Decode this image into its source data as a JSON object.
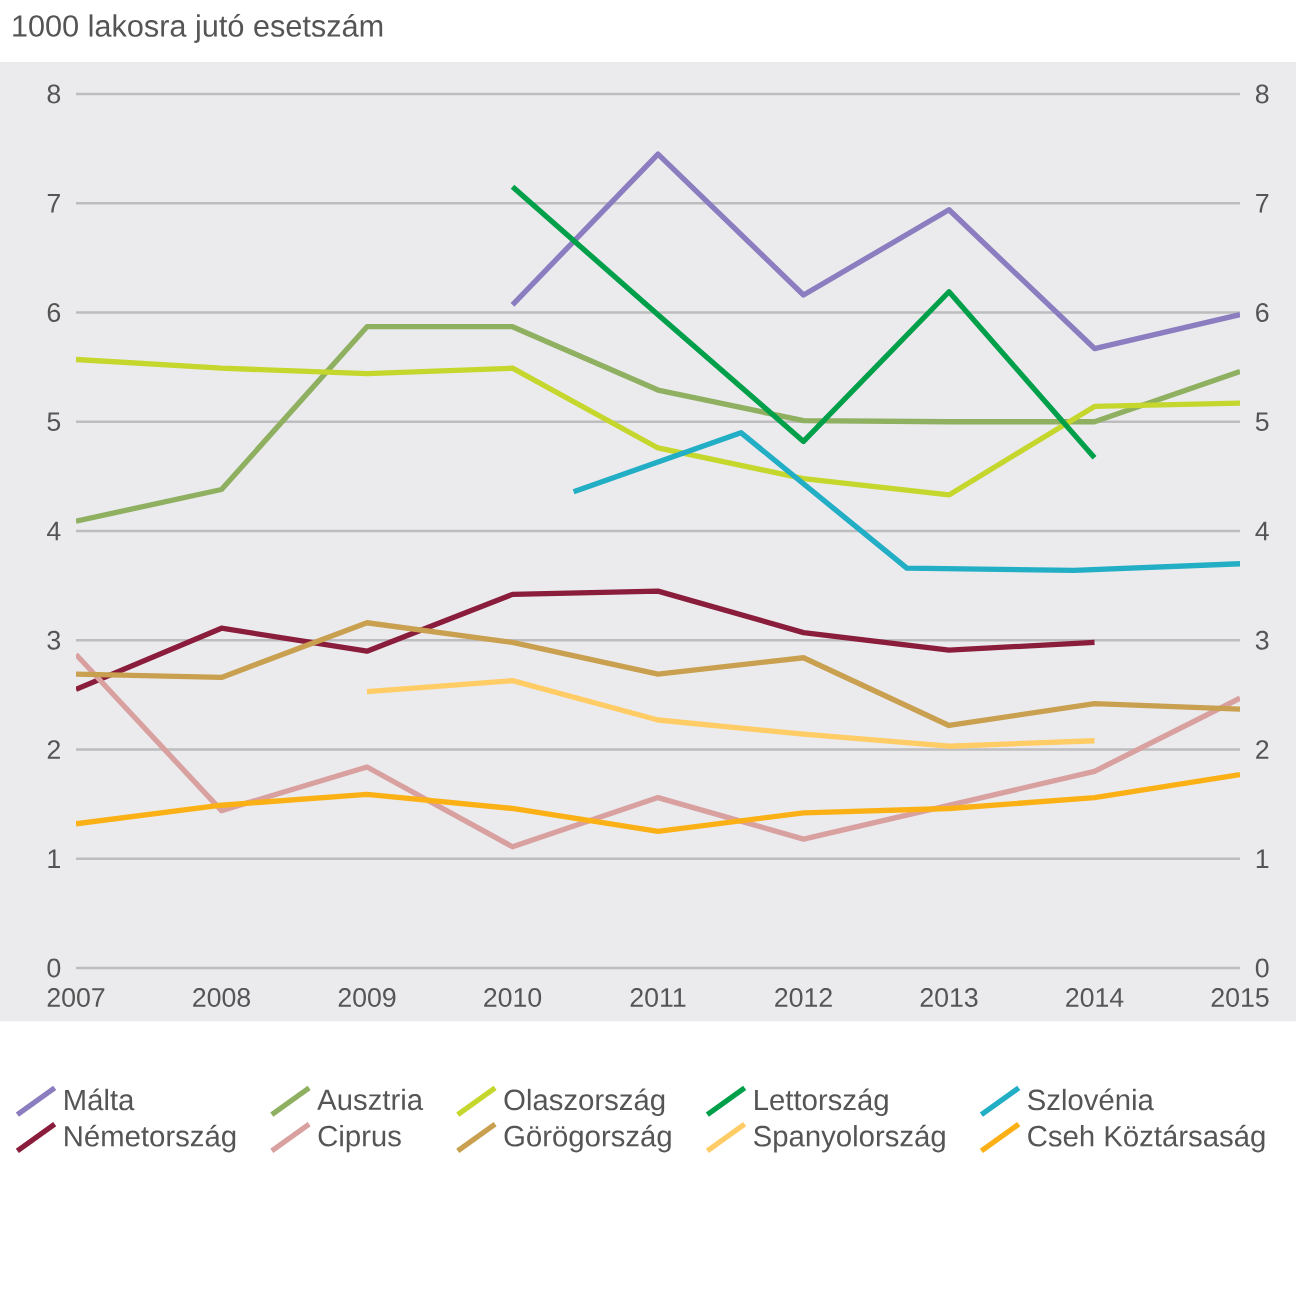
{
  "chart_data": {
    "type": "line",
    "ylabel": "1000 lakosra jutó esetszám",
    "x": [
      2007,
      2008,
      2009,
      2010,
      2011,
      2012,
      2013,
      2014,
      2015
    ],
    "xlim": [
      2007,
      2015
    ],
    "xticks": [
      2007,
      2008,
      2009,
      2010,
      2011,
      2012,
      2013,
      2014,
      2015
    ],
    "ylim": [
      0,
      8
    ],
    "yticks": [
      0,
      1,
      2,
      3,
      4,
      5,
      6,
      7,
      8
    ],
    "y2lim": [
      0,
      8
    ],
    "y2ticks": [
      0,
      1,
      2,
      3,
      4,
      5,
      6,
      7,
      8
    ],
    "grid": "y",
    "legend": "bottom",
    "marker": "none",
    "line_style": "solid",
    "series": [
      {
        "name": "Málta",
        "color": "#8b7dbf",
        "values": [
          null,
          null,
          null,
          6.07,
          7.45,
          6.16,
          6.94,
          5.67,
          5.98
        ]
      },
      {
        "name": "Ausztria",
        "color": "#8fb060",
        "values": [
          4.09,
          4.38,
          5.87,
          5.87,
          5.29,
          5.01,
          5.0,
          5.0,
          5.46
        ]
      },
      {
        "name": "Olaszország",
        "color": "#c5d62d",
        "values": [
          5.57,
          5.49,
          5.44,
          5.49,
          4.76,
          4.48,
          4.33,
          5.14,
          5.17
        ]
      },
      {
        "name": "Lettország",
        "color": "#00a04a",
        "values": [
          null,
          null,
          null,
          7.15,
          5.98,
          4.82,
          6.19,
          4.67,
          null
        ]
      },
      {
        "name": "Szlovénia",
        "color": "#22aec4",
        "x": [
          2010.42,
          2011.57,
          2012.71,
          2013.86,
          2015
        ],
        "values": [
          4.36,
          4.9,
          3.66,
          3.64,
          3.7
        ]
      },
      {
        "name": "Németország",
        "color": "#8a1c3c",
        "values": [
          2.55,
          3.11,
          2.9,
          3.42,
          3.45,
          3.07,
          2.91,
          2.98,
          null
        ]
      },
      {
        "name": "Ciprus",
        "color": "#d9a0a0",
        "values": [
          2.87,
          1.44,
          1.84,
          1.11,
          1.56,
          1.18,
          1.49,
          1.8,
          2.47
        ]
      },
      {
        "name": "Görögország",
        "color": "#c9a050",
        "values": [
          2.69,
          2.66,
          3.16,
          2.98,
          2.69,
          2.84,
          2.22,
          2.42,
          2.37
        ]
      },
      {
        "name": "Spanyolország",
        "color": "#ffcc66",
        "values": [
          null,
          null,
          2.53,
          2.63,
          2.27,
          2.14,
          2.03,
          2.08,
          null
        ]
      },
      {
        "name": "Cseh Köztársaság",
        "color": "#fbb116",
        "values": [
          1.32,
          1.49,
          1.59,
          1.46,
          1.25,
          1.42,
          1.46,
          1.56,
          1.77
        ]
      }
    ]
  }
}
